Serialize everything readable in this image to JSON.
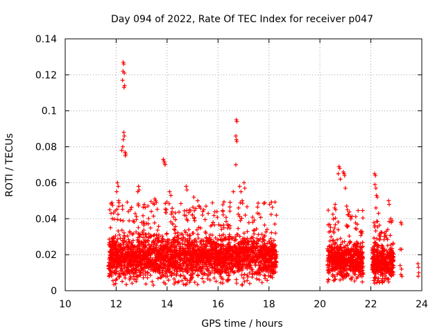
{
  "chart_data": {
    "type": "scatter",
    "title": "Day 094 of 2022, Rate Of TEC Index for receiver p047",
    "xlabel": "GPS time / hours",
    "ylabel": "ROTI / TECUs",
    "xlim": [
      10,
      24
    ],
    "ylim": [
      0,
      0.14
    ],
    "x_ticks": [
      "10",
      "12",
      "14",
      "16",
      "18",
      "20",
      "22",
      "24"
    ],
    "y_ticks": [
      "0",
      "0.02",
      "0.04",
      "0.06",
      "0.08",
      "0.1",
      "0.12",
      "0.14"
    ],
    "grid": true,
    "marker": "+",
    "color": "#ff0000",
    "series": [
      {
        "name": "ROTI",
        "points": [
          [
            12.28,
            0.127
          ],
          [
            12.3,
            0.126
          ],
          [
            12.27,
            0.122
          ],
          [
            12.32,
            0.121
          ],
          [
            12.25,
            0.117
          ],
          [
            12.33,
            0.114
          ],
          [
            12.31,
            0.113
          ],
          [
            12.3,
            0.088
          ],
          [
            12.32,
            0.086
          ],
          [
            12.28,
            0.084
          ],
          [
            12.35,
            0.077
          ],
          [
            12.38,
            0.076
          ],
          [
            12.36,
            0.075
          ],
          [
            12.22,
            0.078
          ],
          [
            12.26,
            0.08
          ],
          [
            12.88,
            0.058
          ],
          [
            12.9,
            0.056
          ],
          [
            12.85,
            0.055
          ],
          [
            13.52,
            0.051
          ],
          [
            13.55,
            0.05
          ],
          [
            13.5,
            0.048
          ],
          [
            13.58,
            0.049
          ],
          [
            13.85,
            0.073
          ],
          [
            13.88,
            0.072
          ],
          [
            13.9,
            0.071
          ],
          [
            13.92,
            0.07
          ],
          [
            14.1,
            0.055
          ],
          [
            14.15,
            0.053
          ],
          [
            14.75,
            0.058
          ],
          [
            14.78,
            0.056
          ],
          [
            15.05,
            0.052
          ],
          [
            15.2,
            0.05
          ],
          [
            16.72,
            0.095
          ],
          [
            16.74,
            0.094
          ],
          [
            16.7,
            0.086
          ],
          [
            16.72,
            0.084
          ],
          [
            16.74,
            0.083
          ],
          [
            16.7,
            0.07
          ],
          [
            16.6,
            0.055
          ],
          [
            16.85,
            0.058
          ],
          [
            16.9,
            0.055
          ],
          [
            17.02,
            0.06
          ],
          [
            16.95,
            0.05
          ],
          [
            17.05,
            0.057
          ],
          [
            11.75,
            0.045
          ],
          [
            11.8,
            0.043
          ],
          [
            11.85,
            0.04
          ],
          [
            11.78,
            0.035
          ],
          [
            12.05,
            0.06
          ],
          [
            12.08,
            0.058
          ],
          [
            12.02,
            0.055
          ],
          [
            12.1,
            0.05
          ],
          [
            20.58,
            0.046
          ],
          [
            20.6,
            0.048
          ],
          [
            20.62,
            0.045
          ],
          [
            20.75,
            0.069
          ],
          [
            20.78,
            0.068
          ],
          [
            20.72,
            0.065
          ],
          [
            20.8,
            0.062
          ],
          [
            20.92,
            0.066
          ],
          [
            20.95,
            0.065
          ],
          [
            20.97,
            0.064
          ],
          [
            21.0,
            0.057
          ],
          [
            21.05,
            0.047
          ],
          [
            21.08,
            0.045
          ],
          [
            22.15,
            0.065
          ],
          [
            22.18,
            0.064
          ],
          [
            22.16,
            0.059
          ],
          [
            22.2,
            0.057
          ],
          [
            22.22,
            0.053
          ],
          [
            22.25,
            0.052
          ],
          [
            22.2,
            0.046
          ],
          [
            22.3,
            0.043
          ],
          [
            22.7,
            0.05
          ],
          [
            22.72,
            0.048
          ],
          [
            22.78,
            0.04
          ],
          [
            22.8,
            0.038
          ],
          [
            21.6,
            0.033
          ],
          [
            21.65,
            0.033
          ],
          [
            23.18,
            0.038
          ],
          [
            23.2,
            0.037
          ],
          [
            23.15,
            0.023
          ],
          [
            23.2,
            0.023
          ],
          [
            23.15,
            0.014
          ],
          [
            23.2,
            0.012
          ],
          [
            23.18,
            0.009
          ],
          [
            23.22,
            0.008
          ],
          [
            23.85,
            0.015
          ],
          [
            23.87,
            0.013
          ],
          [
            23.88,
            0.01
          ],
          [
            23.86,
            0.008
          ]
        ]
      }
    ],
    "dense_clusters": [
      {
        "x_from": 11.7,
        "x_to": 18.3,
        "y_core_low": 0.003,
        "y_core_high": 0.035,
        "upper_tail_to": 0.05,
        "count": 2600
      },
      {
        "x_from": 20.3,
        "x_to": 21.7,
        "y_core_low": 0.004,
        "y_core_high": 0.03,
        "upper_tail_to": 0.045,
        "count": 650
      },
      {
        "x_from": 22.05,
        "x_to": 22.9,
        "y_core_low": 0.004,
        "y_core_high": 0.028,
        "upper_tail_to": 0.04,
        "count": 420
      }
    ]
  }
}
